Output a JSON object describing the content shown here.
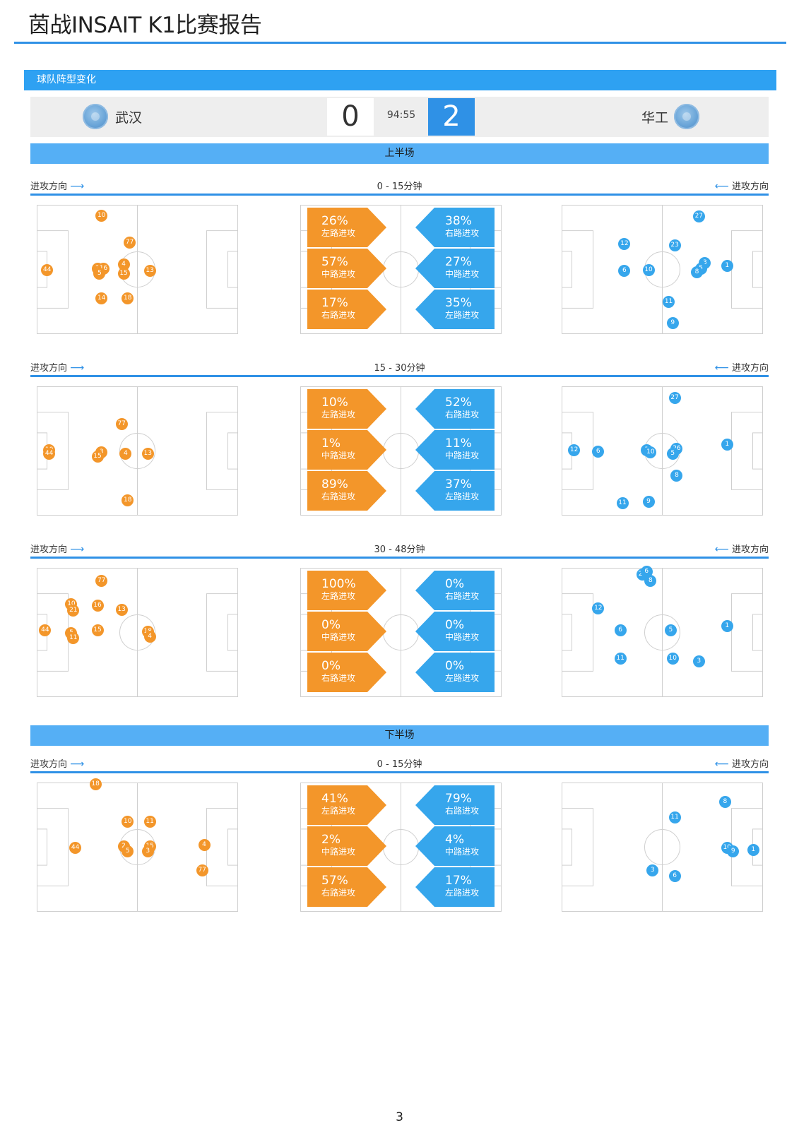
{
  "doc": {
    "title": "茵战INSAIT K1比赛报告",
    "page_number": "3"
  },
  "section": {
    "label": "球队阵型变化"
  },
  "match": {
    "home_name": "武汉",
    "home_score": "0",
    "away_name": "华工",
    "away_score": "2",
    "time": "94:55",
    "colors": {
      "home": "#f3962a",
      "away": "#36a6ec",
      "accent": "#2f91e6"
    }
  },
  "labels": {
    "attack_dir": "进攻方向",
    "first_half": "上半场",
    "second_half": "下半场"
  },
  "periods": [
    {
      "label": "0 - 15分钟",
      "home_stats": [
        {
          "pct": "26%",
          "label": "左路进攻"
        },
        {
          "pct": "57%",
          "label": "中路进攻"
        },
        {
          "pct": "17%",
          "label": "右路进攻"
        }
      ],
      "away_stats": [
        {
          "pct": "38%",
          "label": "右路进攻"
        },
        {
          "pct": "27%",
          "label": "中路进攻"
        },
        {
          "pct": "35%",
          "label": "左路进攻"
        }
      ],
      "home_players": [
        "10",
        "77",
        "2",
        "16",
        "5",
        "4",
        "15",
        "13",
        "44",
        "14",
        "18"
      ],
      "away_players": [
        "27",
        "12",
        "23",
        "6",
        "10",
        "3",
        "5",
        "8",
        "1",
        "11",
        "9"
      ]
    },
    {
      "label": "15 - 30分钟",
      "home_stats": [
        {
          "pct": "10%",
          "label": "左路进攻"
        },
        {
          "pct": "1%",
          "label": "中路进攻"
        },
        {
          "pct": "89%",
          "label": "右路进攻"
        }
      ],
      "away_stats": [
        {
          "pct": "52%",
          "label": "右路进攻"
        },
        {
          "pct": "11%",
          "label": "中路进攻"
        },
        {
          "pct": "37%",
          "label": "左路进攻"
        }
      ],
      "home_players": [
        "77",
        "10",
        "44",
        "3",
        "15",
        "4",
        "13",
        "18"
      ],
      "away_players": [
        "27",
        "12",
        "6",
        "3",
        "10",
        "26",
        "5",
        "1",
        "8",
        "11",
        "9"
      ]
    },
    {
      "label": "30 - 48分钟",
      "home_stats": [
        {
          "pct": "100%",
          "label": "左路进攻"
        },
        {
          "pct": "0%",
          "label": "中路进攻"
        },
        {
          "pct": "0%",
          "label": "右路进攻"
        }
      ],
      "away_stats": [
        {
          "pct": "0%",
          "label": "右路进攻"
        },
        {
          "pct": "0%",
          "label": "中路进攻"
        },
        {
          "pct": "0%",
          "label": "左路进攻"
        }
      ],
      "home_players": [
        "77",
        "10",
        "21",
        "16",
        "13",
        "44",
        "5",
        "11",
        "15",
        "18",
        "4"
      ],
      "away_players": [
        "27",
        "6",
        "8",
        "12",
        "6",
        "5",
        "1",
        "11",
        "10",
        "3"
      ]
    },
    {
      "label": "0 - 15分钟",
      "home_stats": [
        {
          "pct": "41%",
          "label": "左路进攻"
        },
        {
          "pct": "2%",
          "label": "中路进攻"
        },
        {
          "pct": "57%",
          "label": "右路进攻"
        }
      ],
      "away_stats": [
        {
          "pct": "79%",
          "label": "右路进攻"
        },
        {
          "pct": "4%",
          "label": "中路进攻"
        },
        {
          "pct": "17%",
          "label": "左路进攻"
        }
      ],
      "home_players": [
        "18",
        "10",
        "11",
        "44",
        "2",
        "5",
        "15",
        "3",
        "4",
        "77"
      ],
      "away_players": [
        "8",
        "11",
        "10",
        "9",
        "1",
        "3",
        "6"
      ]
    }
  ]
}
